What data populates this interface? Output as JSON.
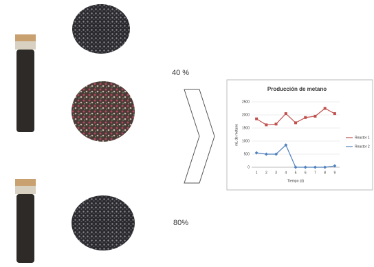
{
  "labels": {
    "top": "40 %",
    "bottom": "80%"
  },
  "chart_data": {
    "type": "line",
    "title": "Producción de metano",
    "x_label": "Tiempo (d)",
    "y_label": "mL de metano",
    "categories": [
      "1",
      "2",
      "3",
      "4",
      "5",
      "6",
      "7",
      "8",
      "9"
    ],
    "series": [
      {
        "name": "Reactor 1",
        "color": "#c0504d",
        "marker": "square",
        "values": [
          1850,
          1620,
          1650,
          2050,
          1700,
          1900,
          1950,
          2250,
          2050
        ]
      },
      {
        "name": "Reactor 2",
        "color": "#4f81bd",
        "marker": "diamond",
        "values": [
          550,
          500,
          500,
          850,
          0,
          0,
          0,
          0,
          50
        ]
      }
    ],
    "ylim": [
      0,
      2500
    ],
    "yticks": [
      0,
      500,
      1000,
      1500,
      2000,
      2500
    ],
    "grid": true,
    "legend": "right"
  }
}
